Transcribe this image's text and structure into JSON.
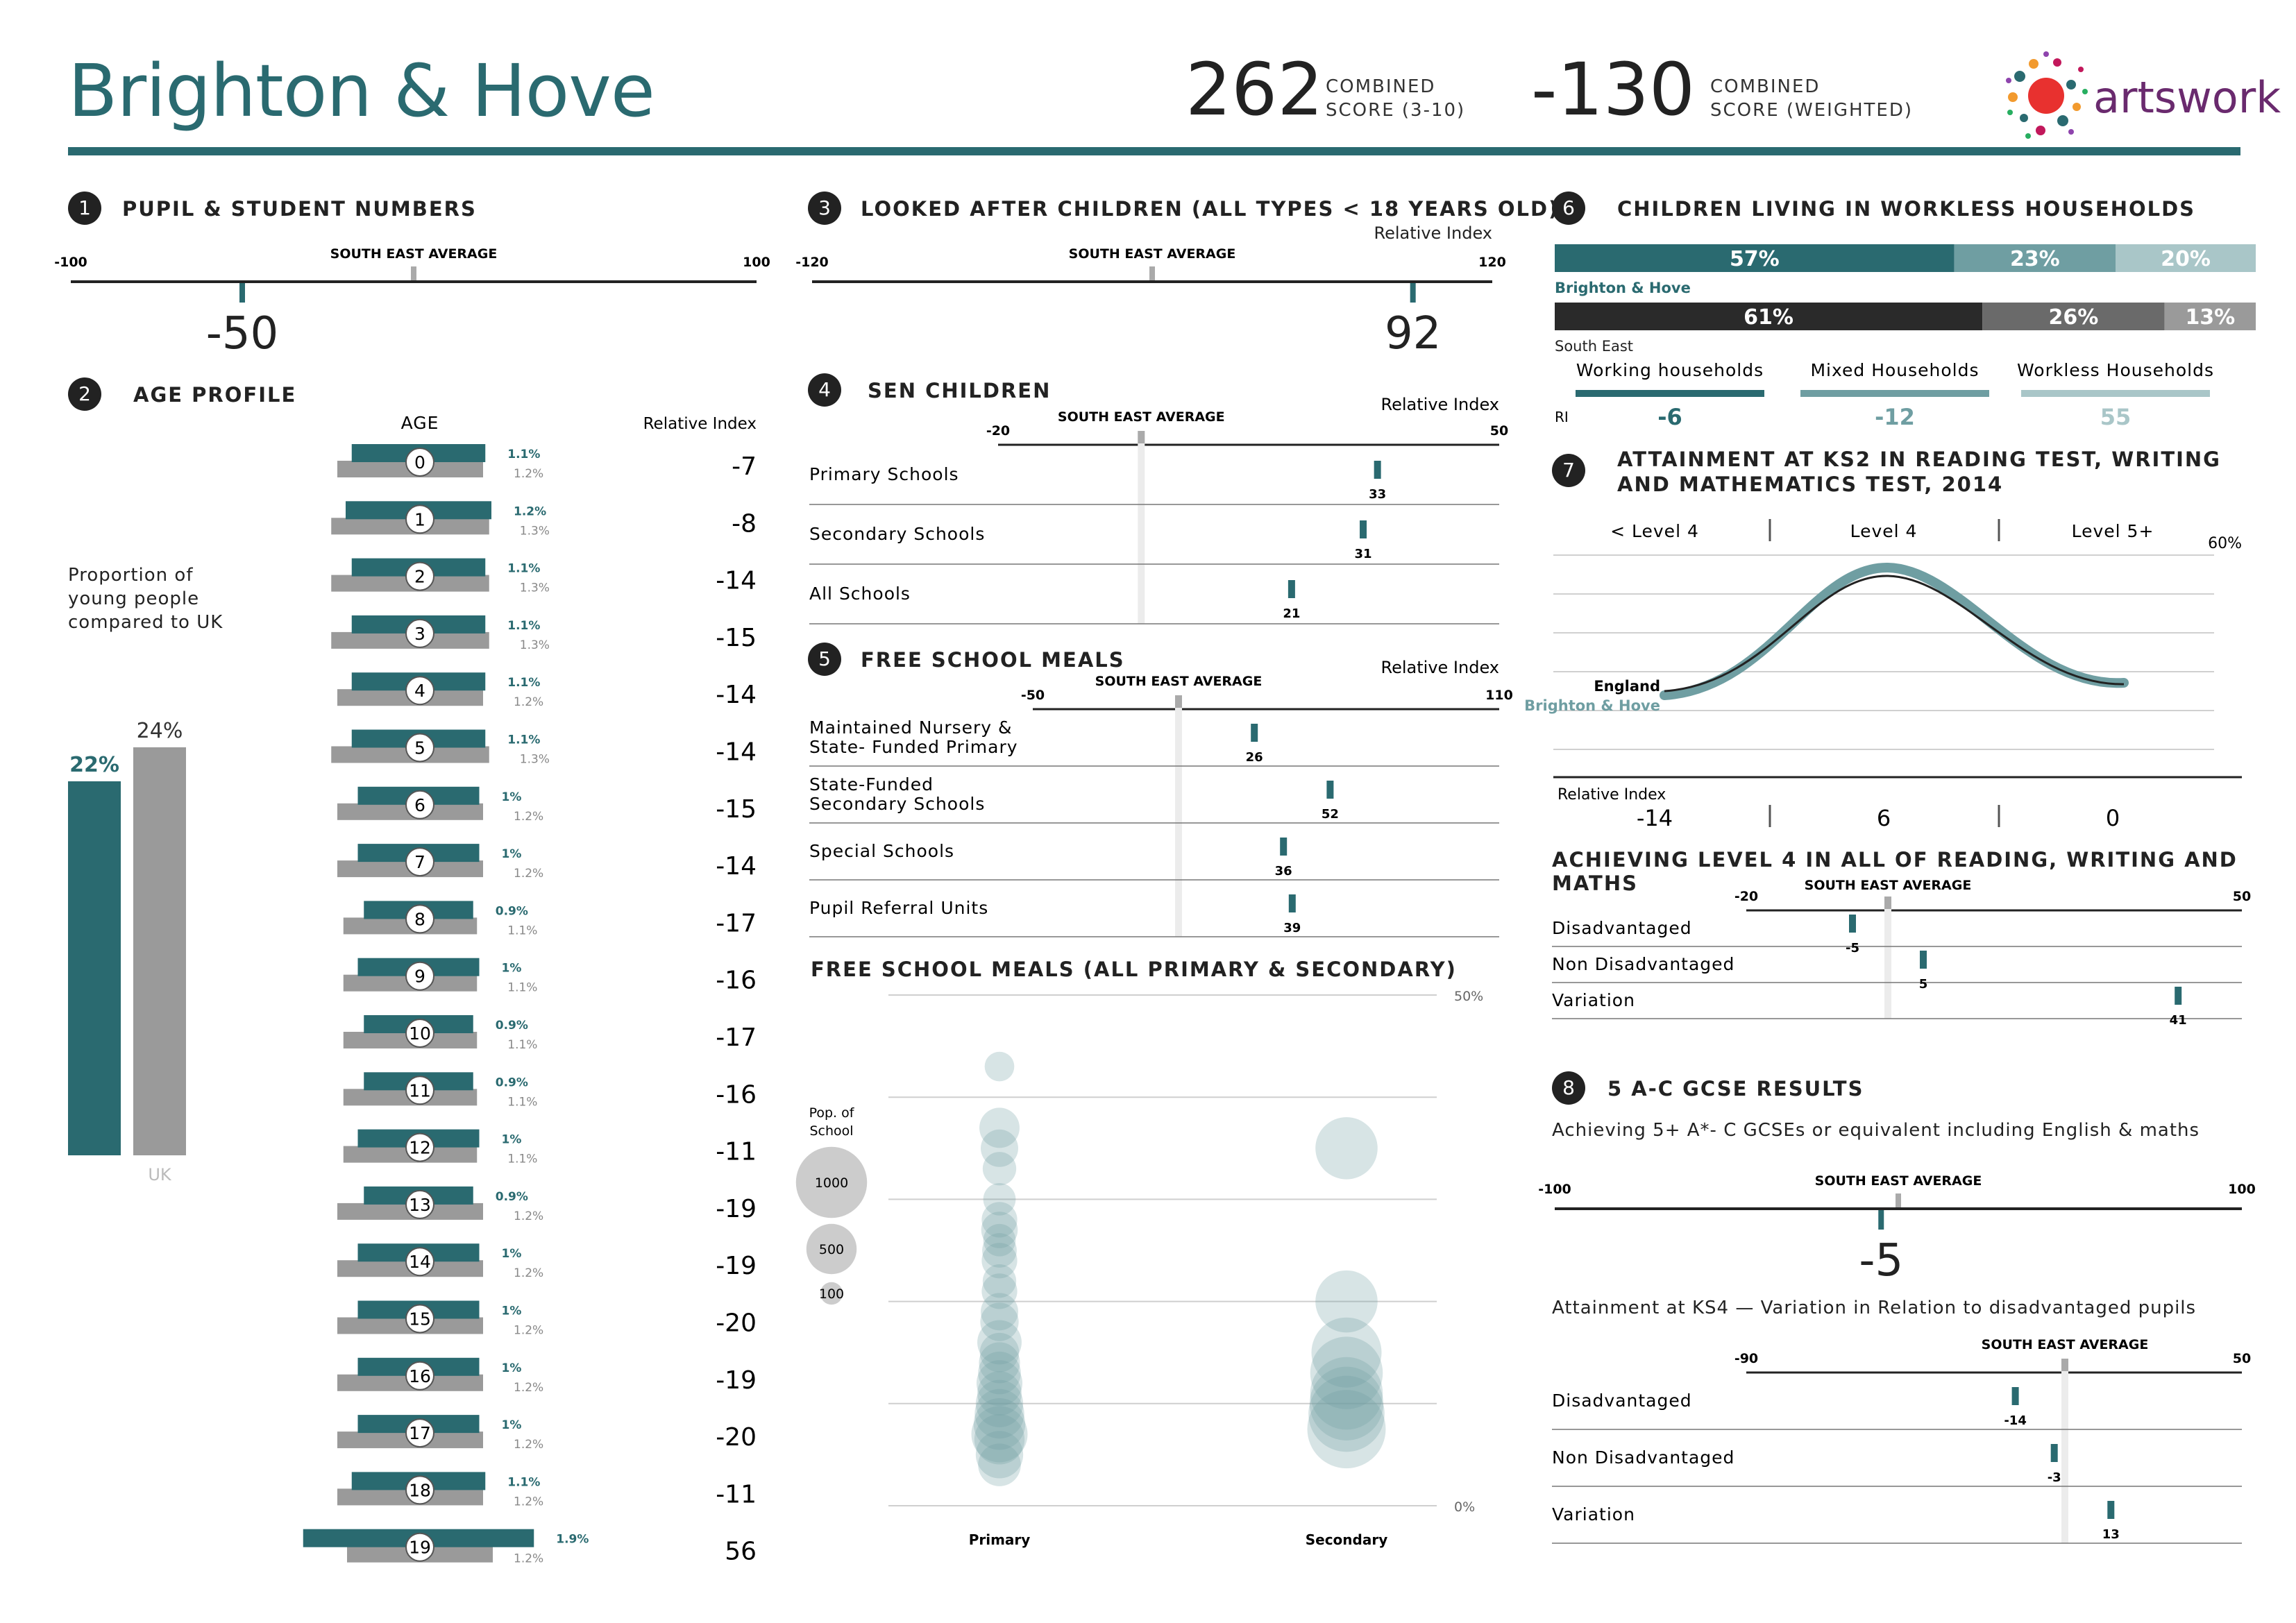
{
  "header": {
    "title": "Brighton & Hove",
    "combined_score": "262",
    "combined_score_label_1": "COMBINED",
    "combined_score_label_2": "SCORE (3-10)",
    "weighted_score": "-130",
    "weighted_score_label_1": "COMBINED",
    "weighted_score_label_2": "SCORE (WEIGHTED)",
    "logo_text": "artswork"
  },
  "colors": {
    "teal": "#2a6a70",
    "grey": "#9a9a9a",
    "light_teal": "#6f9ea2",
    "pale_teal": "#a9c6c8",
    "dark": "#2a2a2a"
  },
  "sections": {
    "s1": {
      "num": "1",
      "title": "PUPIL & STUDENT NUMBERS"
    },
    "s2": {
      "num": "2",
      "title": "AGE PROFILE"
    },
    "s3": {
      "num": "3",
      "title": "LOOKED AFTER CHILDREN (ALL TYPES < 18 YEARS OLD)"
    },
    "s4": {
      "num": "4",
      "title": "SEN CHILDREN"
    },
    "s5": {
      "num": "5",
      "title": "FREE SCHOOL MEALS"
    },
    "s5b": {
      "title": "FREE SCHOOL MEALS (ALL PRIMARY & SECONDARY)"
    },
    "s6": {
      "num": "6",
      "title": "CHILDREN LIVING IN WORKLESS HOUSEHOLDS"
    },
    "s7": {
      "num": "7",
      "title_1": "ATTAINMENT AT KS2 IN READING TEST, WRITING",
      "title_2": "AND MATHEMATICS TEST, 2014"
    },
    "s7b": {
      "title": "ACHIEVING LEVEL 4 IN ALL OF READING, WRITING AND MATHS"
    },
    "s8": {
      "num": "8",
      "title": "5 A-C GCSE RESULTS",
      "subtitle": "Achieving 5+ A*- C GCSEs or equivalent including English & maths",
      "subtitle_2": "Attainment at KS4 — Variation in Relation to disadvantaged pupils"
    }
  },
  "common": {
    "se_avg": "SOUTH EAST AVERAGE",
    "relative_index": "Relative Index"
  },
  "chart_data": [
    {
      "id": "pupil_numbers",
      "type": "scale",
      "min": -100,
      "max": 100,
      "min_label": "-100",
      "max_label": "100",
      "value": -50,
      "value_label": "-50"
    },
    {
      "id": "age_profile",
      "type": "bar",
      "header_age": "AGE",
      "header_ri": "Relative Index",
      "note": "Proportion of young people compared to UK",
      "summary": {
        "local": 22,
        "local_label": "22%",
        "uk": 24,
        "uk_label": "24%",
        "uk_caption": "UK"
      },
      "rows": [
        {
          "age": "0",
          "local": 1.1,
          "local_label": "1.1%",
          "uk": 1.2,
          "uk_label": "1.2%",
          "ri": "-7"
        },
        {
          "age": "1",
          "local": 1.2,
          "local_label": "1.2%",
          "uk": 1.3,
          "uk_label": "1.3%",
          "ri": "-8"
        },
        {
          "age": "2",
          "local": 1.1,
          "local_label": "1.1%",
          "uk": 1.3,
          "uk_label": "1.3%",
          "ri": "-14"
        },
        {
          "age": "3",
          "local": 1.1,
          "local_label": "1.1%",
          "uk": 1.3,
          "uk_label": "1.3%",
          "ri": "-15"
        },
        {
          "age": "4",
          "local": 1.1,
          "local_label": "1.1%",
          "uk": 1.2,
          "uk_label": "1.2%",
          "ri": "-14"
        },
        {
          "age": "5",
          "local": 1.1,
          "local_label": "1.1%",
          "uk": 1.3,
          "uk_label": "1.3%",
          "ri": "-14"
        },
        {
          "age": "6",
          "local": 1.0,
          "local_label": "1%",
          "uk": 1.2,
          "uk_label": "1.2%",
          "ri": "-15"
        },
        {
          "age": "7",
          "local": 1.0,
          "local_label": "1%",
          "uk": 1.2,
          "uk_label": "1.2%",
          "ri": "-14"
        },
        {
          "age": "8",
          "local": 0.9,
          "local_label": "0.9%",
          "uk": 1.1,
          "uk_label": "1.1%",
          "ri": "-17"
        },
        {
          "age": "9",
          "local": 1.0,
          "local_label": "1%",
          "uk": 1.1,
          "uk_label": "1.1%",
          "ri": "-16"
        },
        {
          "age": "10",
          "local": 0.9,
          "local_label": "0.9%",
          "uk": 1.1,
          "uk_label": "1.1%",
          "ri": "-17"
        },
        {
          "age": "11",
          "local": 0.9,
          "local_label": "0.9%",
          "uk": 1.1,
          "uk_label": "1.1%",
          "ri": "-16"
        },
        {
          "age": "12",
          "local": 1.0,
          "local_label": "1%",
          "uk": 1.1,
          "uk_label": "1.1%",
          "ri": "-11"
        },
        {
          "age": "13",
          "local": 0.9,
          "local_label": "0.9%",
          "uk": 1.2,
          "uk_label": "1.2%",
          "ri": "-19"
        },
        {
          "age": "14",
          "local": 1.0,
          "local_label": "1%",
          "uk": 1.2,
          "uk_label": "1.2%",
          "ri": "-19"
        },
        {
          "age": "15",
          "local": 1.0,
          "local_label": "1%",
          "uk": 1.2,
          "uk_label": "1.2%",
          "ri": "-20"
        },
        {
          "age": "16",
          "local": 1.0,
          "local_label": "1%",
          "uk": 1.2,
          "uk_label": "1.2%",
          "ri": "-19"
        },
        {
          "age": "17",
          "local": 1.0,
          "local_label": "1%",
          "uk": 1.2,
          "uk_label": "1.2%",
          "ri": "-20"
        },
        {
          "age": "18",
          "local": 1.1,
          "local_label": "1.1%",
          "uk": 1.2,
          "uk_label": "1.2%",
          "ri": "-11"
        },
        {
          "age": "19",
          "local": 1.9,
          "local_label": "1.9%",
          "uk": 1.2,
          "uk_label": "1.2%",
          "ri": "56"
        }
      ]
    },
    {
      "id": "looked_after",
      "type": "scale",
      "min": -120,
      "max": 120,
      "min_label": "-120",
      "max_label": "120",
      "value": 92,
      "value_label": "92"
    },
    {
      "id": "sen",
      "type": "dot",
      "min": -20,
      "max": 50,
      "min_label": "-20",
      "max_label": "50",
      "rows": [
        {
          "label": "Primary Schools",
          "value": 33,
          "value_label": "33"
        },
        {
          "label": "Secondary Schools",
          "value": 31,
          "value_label": "31"
        },
        {
          "label": "All Schools",
          "value": 21,
          "value_label": "21"
        }
      ]
    },
    {
      "id": "fsm",
      "type": "dot",
      "min": -50,
      "max": 110,
      "min_label": "-50",
      "max_label": "110",
      "rows": [
        {
          "label": "Maintained Nursery &",
          "label2": "State- Funded Primary",
          "value": 26,
          "value_label": "26"
        },
        {
          "label": "State-Funded",
          "label2": "Secondary Schools",
          "value": 52,
          "value_label": "52"
        },
        {
          "label": "Special Schools",
          "label2": "",
          "value": 36,
          "value_label": "36"
        },
        {
          "label": "Pupil Referral Units",
          "label2": "",
          "value": 39,
          "value_label": "39"
        }
      ]
    },
    {
      "id": "fsm_bubbles",
      "type": "scatter",
      "categories": [
        "Primary",
        "Secondary"
      ],
      "ylim": [
        0,
        50
      ],
      "ymax_label": "50%",
      "ymin_label": "0%",
      "legend_title_1": "Pop. of",
      "legend_title_2": "School",
      "legend": [
        {
          "pop": 1000,
          "label": "1000"
        },
        {
          "pop": 500,
          "label": "500"
        },
        {
          "pop": 100,
          "label": "100"
        }
      ],
      "primary": [
        {
          "y": 43,
          "pop": 250
        },
        {
          "y": 37,
          "pop": 460
        },
        {
          "y": 35,
          "pop": 400
        },
        {
          "y": 33,
          "pop": 320
        },
        {
          "y": 30,
          "pop": 300
        },
        {
          "y": 28,
          "pop": 360
        },
        {
          "y": 27,
          "pop": 380
        },
        {
          "y": 26,
          "pop": 300
        },
        {
          "y": 25,
          "pop": 340
        },
        {
          "y": 24,
          "pop": 360
        },
        {
          "y": 22,
          "pop": 320
        },
        {
          "y": 21,
          "pop": 360
        },
        {
          "y": 19,
          "pop": 400
        },
        {
          "y": 18,
          "pop": 420
        },
        {
          "y": 16,
          "pop": 560
        },
        {
          "y": 15,
          "pop": 440
        },
        {
          "y": 14,
          "pop": 480
        },
        {
          "y": 13,
          "pop": 520
        },
        {
          "y": 12,
          "pop": 600
        },
        {
          "y": 11,
          "pop": 560
        },
        {
          "y": 10,
          "pop": 640
        },
        {
          "y": 9,
          "pop": 700
        },
        {
          "y": 8,
          "pop": 760
        },
        {
          "y": 7,
          "pop": 900
        },
        {
          "y": 6.5,
          "pop": 720
        },
        {
          "y": 5,
          "pop": 640
        },
        {
          "y": 4,
          "pop": 520
        }
      ],
      "secondary": [
        {
          "y": 35,
          "pop": 1100
        },
        {
          "y": 20,
          "pop": 1100
        },
        {
          "y": 15,
          "pop": 1400
        },
        {
          "y": 13,
          "pop": 1500
        },
        {
          "y": 11,
          "pop": 1500
        },
        {
          "y": 10,
          "pop": 1550
        },
        {
          "y": 9,
          "pop": 1650
        },
        {
          "y": 7.5,
          "pop": 1750
        }
      ]
    },
    {
      "id": "workless",
      "type": "stacked_bar",
      "series": [
        {
          "name": "Brighton & Hove",
          "values": [
            57,
            23,
            20
          ],
          "labels": [
            "57%",
            "23%",
            "20%"
          ]
        },
        {
          "name": "South East",
          "values": [
            61,
            26,
            13
          ],
          "labels": [
            "61%",
            "26%",
            "13%"
          ]
        }
      ],
      "categories": [
        "Working households",
        "Mixed Households",
        "Workless Households"
      ],
      "ri_label": "RI",
      "ri": [
        "-6",
        "-12",
        "55"
      ]
    },
    {
      "id": "ks2",
      "type": "line",
      "categories": [
        "< Level 4",
        "Level 4",
        "Level 5+"
      ],
      "y_max_label": "60%",
      "series": [
        {
          "name": "England"
        },
        {
          "name": "Brighton & Hove"
        }
      ],
      "ri_title": "Relative Index",
      "ri": [
        "-14",
        "6",
        "0"
      ]
    },
    {
      "id": "level4",
      "type": "dot",
      "min": -20,
      "max": 50,
      "min_label": "-20",
      "max_label": "50",
      "rows": [
        {
          "label": "Disadvantaged",
          "value": -5,
          "value_label": "-5"
        },
        {
          "label": "Non Disadvantaged",
          "value": 5,
          "value_label": "5"
        },
        {
          "label": "Variation",
          "value": 41,
          "value_label": "41"
        }
      ]
    },
    {
      "id": "gcse",
      "type": "scale",
      "min": -100,
      "max": 100,
      "min_label": "-100",
      "max_label": "100",
      "value": -5,
      "value_label": "-5"
    },
    {
      "id": "ks4",
      "type": "dot",
      "min": -90,
      "max": 50,
      "min_label": "-90",
      "max_label": "50",
      "rows": [
        {
          "label": "Disadvantaged",
          "value": -14,
          "value_label": "-14"
        },
        {
          "label": "Non Disadvantaged",
          "value": -3,
          "value_label": "-3"
        },
        {
          "label": "Variation",
          "value": 13,
          "value_label": "13"
        }
      ]
    }
  ]
}
